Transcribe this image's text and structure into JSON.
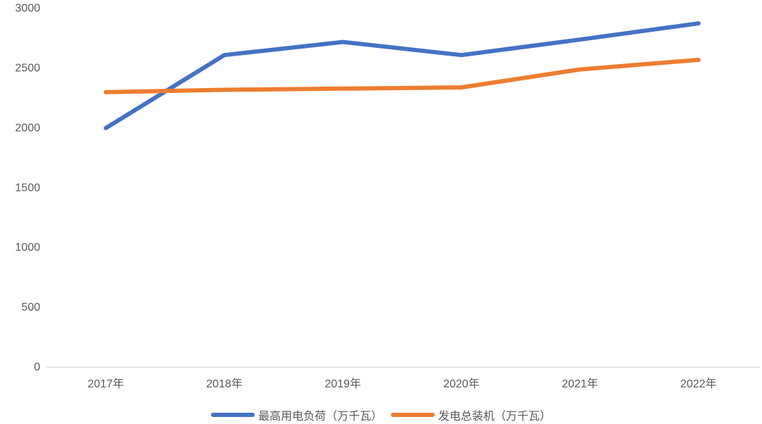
{
  "chart_data": {
    "type": "line",
    "title": "",
    "xlabel": "",
    "ylabel": "",
    "categories": [
      "2017年",
      "2018年",
      "2019年",
      "2020年",
      "2021年",
      "2022年"
    ],
    "series": [
      {
        "name": "最高用电负荷（万千瓦）",
        "color": "#4472C4",
        "values": [
          2000,
          2610,
          2720,
          2610,
          2740,
          2875
        ]
      },
      {
        "name": "发电总装机（万千瓦）",
        "color": "#ED7D31",
        "values": [
          2300,
          2320,
          2330,
          2340,
          2490,
          2570
        ]
      }
    ],
    "ylim": [
      0,
      3000
    ],
    "ytick_step": 500,
    "ytick_labels": [
      "0",
      "500",
      "1000",
      "1500",
      "2000",
      "2500",
      "3000"
    ],
    "grid": false,
    "legend_position": "bottom",
    "axis_text_color": "#595959",
    "axis_line_color": "#D9D9D9",
    "background_color": "#FFFFFF",
    "line_width": 6
  }
}
